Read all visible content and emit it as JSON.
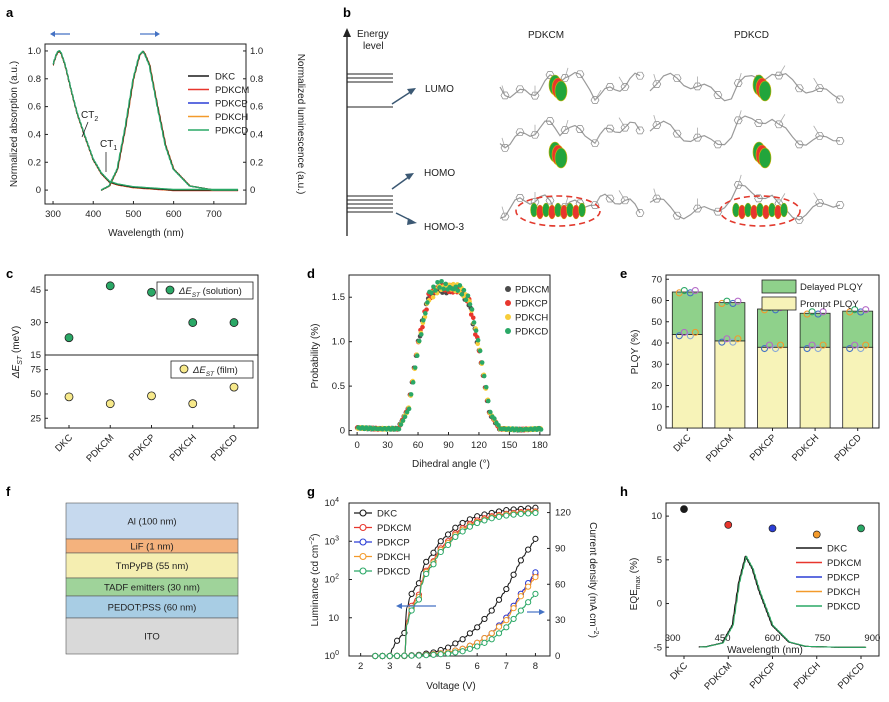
{
  "panels": {
    "a": {
      "label": "a",
      "xlabel": "Wavelength (nm)",
      "ylabel_left": "Normalized absorption (a.u.)",
      "ylabel_right": "Normalized luminescence (a.u.)",
      "xticks": [
        "300",
        "400",
        "500",
        "600",
        "700"
      ],
      "yticks_left": [
        "0",
        "0.2",
        "0.4",
        "0.6",
        "0.8",
        "1.0"
      ],
      "yticks_right": [
        "0",
        "0.2",
        "0.4",
        "0.6",
        "0.8",
        "1.0"
      ],
      "ann_ct2": "CT",
      "ann_ct2_sub": "2",
      "ann_ct1": "CT",
      "ann_ct1_sub": "1",
      "legend": [
        "DKC",
        "PDKCM",
        "PDKCP",
        "PDKCH",
        "PDKCD"
      ]
    },
    "b": {
      "label": "b",
      "energy_title_1": "Energy",
      "energy_title_2": "level",
      "lumo": "LUMO",
      "homo": "HOMO",
      "homo3": "HOMO-3",
      "mol1": "PDKCM",
      "mol2": "PDKCD"
    },
    "c": {
      "label": "c",
      "ylabel": "ΔE",
      "ylabel_sub": "ST",
      "ylabel_unit": " (meV)",
      "legend_solution": "ΔE",
      "legend_solution_sub": "ST",
      "legend_solution_tail": " (solution)",
      "legend_film": "ΔE",
      "legend_film_sub": "ST",
      "legend_film_tail": " (film)",
      "yticks_top": [
        "15",
        "30",
        "45"
      ],
      "yticks_bottom": [
        "25",
        "50",
        "75"
      ],
      "categories": [
        "DKC",
        "PDKCM",
        "PDKCP",
        "PDKCH",
        "PDKCD"
      ]
    },
    "d": {
      "label": "d",
      "xlabel": "Dihedral angle (°)",
      "ylabel": "Probability (%)",
      "xticks": [
        "0",
        "30",
        "60",
        "90",
        "120",
        "150",
        "180"
      ],
      "yticks": [
        "0",
        "0.5",
        "1.0",
        "1.5"
      ],
      "legend": [
        "PDKCM",
        "PDKCP",
        "PDKCH",
        "PDKCD"
      ]
    },
    "e": {
      "label": "e",
      "ylabel": "PLQY (%)",
      "yticks": [
        "0",
        "10",
        "20",
        "30",
        "40",
        "50",
        "60",
        "70"
      ],
      "legend_delayed": "Delayed PLQY",
      "legend_prompt": "Prompt PLQY",
      "categories": [
        "DKC",
        "PDKCM",
        "PDKCP",
        "PDKCH",
        "PDKCD"
      ]
    },
    "f": {
      "label": "f",
      "layers": [
        "Al (100 nm)",
        "LiF (1 nm)",
        "TmPyPB (55 nm)",
        "TADF emitters (30 nm)",
        "PEDOT:PSS (60 nm)",
        "ITO"
      ],
      "colors": [
        "#c6d9ee",
        "#f4b27d",
        "#f5eeb1",
        "#9fd39a",
        "#a8cde4",
        "#d9d9d9"
      ]
    },
    "g": {
      "label": "g",
      "xlabel": "Voltage (V)",
      "ylabel_left": "Luminance (cd cm",
      "ylabel_left_sup": "−2",
      "ylabel_left_tail": ")",
      "ylabel_right": "Current density (mA cm",
      "ylabel_right_sup": "−2",
      "ylabel_right_tail": ")",
      "xticks": [
        "2",
        "3",
        "4",
        "5",
        "6",
        "7",
        "8"
      ],
      "yticks_right": [
        "0",
        "30",
        "60",
        "90",
        "120"
      ],
      "yticks_left_base": [
        "10",
        "10",
        "10",
        "10",
        "10"
      ],
      "yticks_left_exp": [
        "0",
        "",
        "2",
        "3",
        "4"
      ],
      "ytick_10": "10",
      "legend": [
        "DKC",
        "PDKCM",
        "PDKCP",
        "PDKCH",
        "PDKCD"
      ]
    },
    "h": {
      "label": "h",
      "ylabel": "EQE",
      "ylabel_sub": "max",
      "ylabel_tail": " (%)",
      "xlabel": "Wavelength (nm)",
      "yticks": [
        "-5",
        "0",
        "5",
        "10"
      ],
      "xticks": [
        "300",
        "450",
        "600",
        "750",
        "900"
      ],
      "legend": [
        "DKC",
        "PDKCM",
        "PDKCP",
        "PDKCH",
        "PDKCD"
      ],
      "categories": [
        "DKC",
        "PDKCM",
        "PDKCP",
        "PDKCH",
        "PDKCD"
      ]
    }
  },
  "colors": {
    "DKC": "#1a1a1a",
    "PDKCM": "#e8362d",
    "PDKCP": "#2c3fd6",
    "PDKCH": "#f39a2b",
    "PDKCD": "#2aa866",
    "scatter_PDKCM": "#4a4a4a",
    "scatter_PDKCP": "#e8362d",
    "scatter_PDKCH": "#f7cd3a",
    "scatter_PDKCD": "#2aa866"
  },
  "chart_data": [
    {
      "type": "line",
      "panel": "a",
      "title": "",
      "xlabel": "Wavelength (nm)",
      "ylabel": "Normalized absorption (a.u.)",
      "xlim": [
        280,
        780
      ],
      "ylim": [
        -0.1,
        1.05
      ],
      "series": [
        {
          "name": "absorption (all compounds, overlapping)",
          "x": [
            280,
            300,
            310,
            318,
            330,
            345,
            360,
            380,
            400,
            420,
            440,
            460,
            500,
            550,
            600,
            650,
            700,
            750
          ],
          "values": [
            0.55,
            0.9,
            0.99,
            1.0,
            0.9,
            0.72,
            0.55,
            0.38,
            0.22,
            0.12,
            0.06,
            0.04,
            0.02,
            0.01,
            0.0,
            0.0,
            0.0,
            0.0
          ]
        },
        {
          "name": "luminescence (all compounds, overlapping)",
          "x": [
            420,
            440,
            460,
            480,
            500,
            515,
            525,
            540,
            560,
            580,
            600,
            640,
            700,
            750
          ],
          "values": [
            0.0,
            0.03,
            0.15,
            0.45,
            0.8,
            0.97,
            1.0,
            0.9,
            0.6,
            0.32,
            0.15,
            0.03,
            0.0,
            0.0
          ]
        }
      ],
      "legend": [
        "DKC",
        "PDKCM",
        "PDKCP",
        "PDKCH",
        "PDKCD"
      ]
    },
    {
      "type": "scatter",
      "panel": "c",
      "title": "",
      "ylabel": "ΔE_ST (meV)",
      "categories": [
        "DKC",
        "PDKCM",
        "PDKCP",
        "PDKCH",
        "PDKCD"
      ],
      "series": [
        {
          "name": "ΔE_ST (solution)",
          "values": [
            23,
            47,
            44,
            30,
            30
          ],
          "ylim": [
            15,
            52
          ]
        },
        {
          "name": "ΔE_ST (film)",
          "values": [
            47,
            40,
            48,
            40,
            57
          ],
          "ylim": [
            15,
            90
          ]
        }
      ]
    },
    {
      "type": "scatter",
      "panel": "d",
      "title": "",
      "xlabel": "Dihedral angle (°)",
      "ylabel": "Probability (%)",
      "xlim": [
        -8,
        190
      ],
      "ylim": [
        -0.05,
        1.75
      ],
      "series": [
        {
          "name": "PDKCM",
          "x": [
            0,
            20,
            40,
            50,
            60,
            70,
            80,
            90,
            100,
            110,
            120,
            130,
            140,
            160,
            180
          ],
          "values": [
            0.03,
            0.02,
            0.02,
            0.25,
            1.0,
            1.5,
            1.6,
            1.58,
            1.6,
            1.45,
            0.9,
            0.2,
            0.02,
            0.01,
            0.02
          ]
        },
        {
          "name": "PDKCP",
          "x": [
            0,
            20,
            40,
            50,
            60,
            70,
            80,
            90,
            100,
            110,
            120,
            130,
            140,
            160,
            180
          ],
          "values": [
            0.03,
            0.02,
            0.02,
            0.25,
            1.0,
            1.5,
            1.62,
            1.6,
            1.58,
            1.45,
            0.9,
            0.2,
            0.02,
            0.01,
            0.02
          ]
        },
        {
          "name": "PDKCH",
          "x": [
            0,
            20,
            40,
            50,
            60,
            70,
            80,
            90,
            100,
            110,
            120,
            130,
            140,
            160,
            180
          ],
          "values": [
            0.03,
            0.02,
            0.02,
            0.25,
            1.0,
            1.5,
            1.6,
            1.62,
            1.6,
            1.45,
            0.9,
            0.2,
            0.02,
            0.01,
            0.02
          ]
        },
        {
          "name": "PDKCD",
          "x": [
            0,
            20,
            40,
            50,
            60,
            70,
            80,
            90,
            100,
            110,
            120,
            130,
            140,
            160,
            180
          ],
          "values": [
            0.03,
            0.02,
            0.02,
            0.25,
            1.0,
            1.55,
            1.65,
            1.6,
            1.6,
            1.45,
            0.9,
            0.2,
            0.02,
            0.01,
            0.02
          ]
        }
      ]
    },
    {
      "type": "bar",
      "panel": "e",
      "title": "",
      "ylabel": "PLQY (%)",
      "ylim": [
        0,
        72
      ],
      "categories": [
        "DKC",
        "PDKCM",
        "PDKCP",
        "PDKCH",
        "PDKCD"
      ],
      "series": [
        {
          "name": "Prompt PLQY",
          "values": [
            44,
            41,
            38,
            38,
            38
          ]
        },
        {
          "name": "Delayed PLQY",
          "values": [
            20,
            18,
            18,
            16,
            17
          ]
        }
      ]
    },
    {
      "type": "line",
      "panel": "g",
      "title": "",
      "xlabel": "Voltage (V)",
      "ylabel": "Luminance (cd cm−2)",
      "xlim": [
        1.6,
        8.5
      ],
      "ylim_log": [
        1,
        10000
      ],
      "x": [
        2.5,
        3,
        3.5,
        4,
        4.5,
        5,
        5.5,
        6,
        6.5,
        7,
        7.5,
        8
      ],
      "series": [
        {
          "name": "DKC luminance",
          "values": [
            1,
            1,
            4,
            80,
            500,
            1500,
            3000,
            4500,
            5500,
            6500,
            7000,
            7500
          ]
        },
        {
          "name": "PDKCM luminance",
          "values": [
            1,
            1,
            1,
            40,
            300,
            1000,
            2200,
            3500,
            4500,
            5200,
            5800,
            6000
          ]
        },
        {
          "name": "PDKCP luminance",
          "values": [
            1,
            1,
            1,
            35,
            280,
            900,
            2000,
            3200,
            4200,
            5000,
            5500,
            5800
          ]
        },
        {
          "name": "PDKCH luminance",
          "values": [
            1,
            1,
            1,
            35,
            280,
            900,
            2000,
            3200,
            4200,
            5000,
            5500,
            5800
          ]
        },
        {
          "name": "PDKCD luminance",
          "values": [
            1,
            1,
            1,
            30,
            250,
            800,
            1800,
            3000,
            4000,
            4700,
            5200,
            5500
          ]
        },
        {
          "name": "DKC current density",
          "values": [
            0,
            0,
            0.3,
            1,
            3,
            7,
            14,
            24,
            38,
            56,
            80,
            98
          ]
        },
        {
          "name": "PDKCM current density",
          "values": [
            0,
            0,
            0.2,
            0.5,
            1.5,
            3,
            6,
            11,
            19,
            32,
            52,
            68
          ]
        },
        {
          "name": "PDKCP current density",
          "values": [
            0,
            0,
            0.2,
            0.5,
            1.5,
            3,
            6,
            11,
            19,
            32,
            52,
            70
          ]
        },
        {
          "name": "PDKCH current density",
          "values": [
            0,
            0,
            0.2,
            0.5,
            1.5,
            3,
            6,
            11,
            19,
            30,
            50,
            66
          ]
        },
        {
          "name": "PDKCD current density",
          "values": [
            0,
            0,
            0.2,
            0.4,
            1,
            2,
            4,
            8,
            14,
            24,
            38,
            52
          ]
        }
      ]
    },
    {
      "type": "scatter",
      "panel": "h",
      "title": "",
      "ylabel": "EQE_max (%)",
      "ylim": [
        -6,
        11.5
      ],
      "categories": [
        "DKC",
        "PDKCM",
        "PDKCP",
        "PDKCH",
        "PDKCD"
      ],
      "series": [
        {
          "name": "EQE_max",
          "values": [
            10.8,
            9.0,
            8.6,
            7.9,
            8.6
          ]
        },
        {
          "name": "EL spectrum (overlapping)",
          "x": [
            300,
            400,
            450,
            480,
            500,
            520,
            540,
            560,
            600,
            650,
            700,
            800,
            900
          ],
          "values": [
            -5,
            -4.95,
            -4.5,
            -2.5,
            2.5,
            5.4,
            4.0,
            1.5,
            -2.5,
            -4.4,
            -4.9,
            -5,
            -5
          ]
        }
      ]
    }
  ]
}
